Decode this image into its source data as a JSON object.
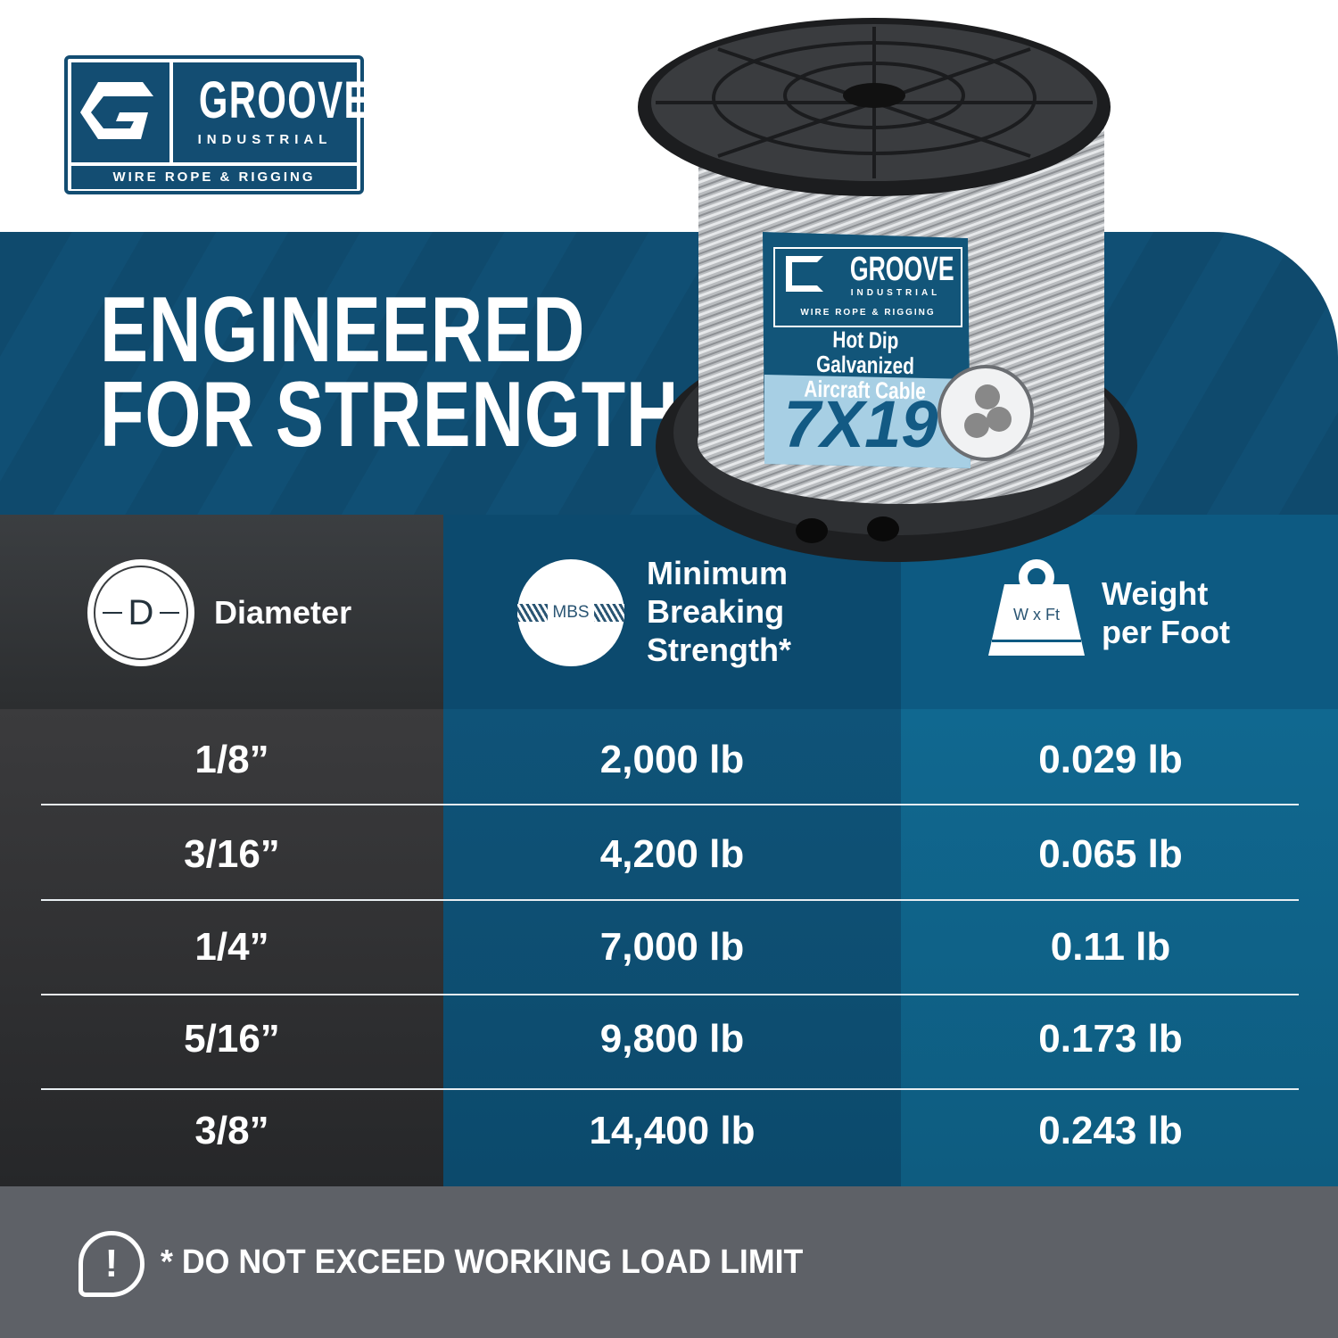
{
  "logo": {
    "brand": "GROOVE",
    "sub": "INDUSTRIAL",
    "tagline": "WIRE ROPE & RIGGING"
  },
  "headline": {
    "line1": "ENGINEERED",
    "line2": "FOR STRENGTH"
  },
  "spool_label": {
    "brand": "GROOVE",
    "sub": "INDUSTRIAL",
    "tagline": "WIRE ROPE & RIGGING",
    "product_line1": "Hot Dip Galvanized",
    "product_line2": "Aircraft Cable",
    "construction": "7X19"
  },
  "table": {
    "headers": [
      {
        "icon": "diameter-icon",
        "icon_text": "D",
        "label": "Diameter"
      },
      {
        "icon": "mbs-rope-icon",
        "icon_text": "MBS",
        "label_lines": [
          "Minimum",
          "Breaking",
          "Strength*"
        ]
      },
      {
        "icon": "weight-icon",
        "icon_text": "W x Ft",
        "label_lines": [
          "Weight",
          "per Foot"
        ]
      }
    ],
    "rows": [
      {
        "diameter": "1/8”",
        "mbs": "2,000 lb",
        "weight": "0.029 lb"
      },
      {
        "diameter": "3/16”",
        "mbs": "4,200 lb",
        "weight": "0.065 lb"
      },
      {
        "diameter": "1/4”",
        "mbs": "7,000 lb",
        "weight": "0.11 lb"
      },
      {
        "diameter": "5/16”",
        "mbs": "9,800 lb",
        "weight": "0.173 lb"
      },
      {
        "diameter": "3/8”",
        "mbs": "14,400 lb",
        "weight": "0.243 lb"
      }
    ]
  },
  "footer": {
    "icon": "alert-speech-icon",
    "note": "* DO NOT EXCEED WORKING LOAD LIMIT"
  },
  "colors": {
    "brand_blue": "#134d72",
    "band": "#0f4a6d",
    "col_gray": "#333538",
    "col_blue": "#0e5075",
    "col_light_blue": "#0f6590",
    "footer": "#5e6167"
  }
}
